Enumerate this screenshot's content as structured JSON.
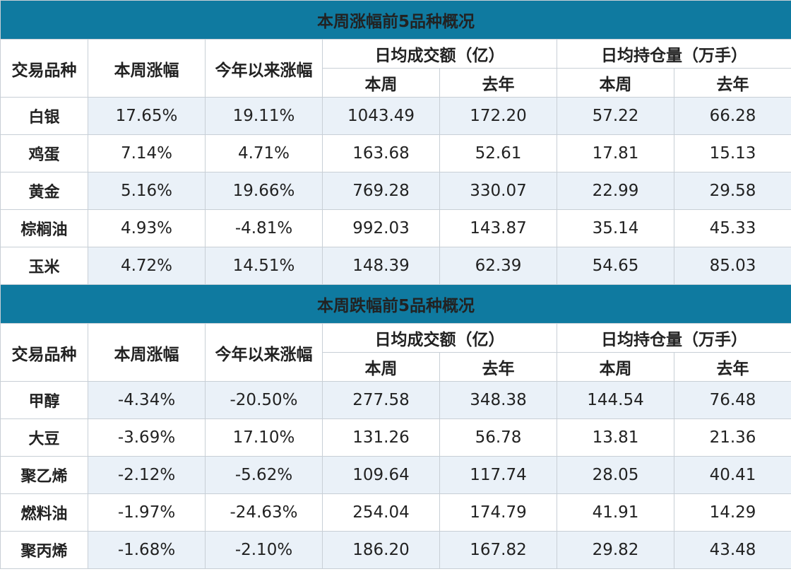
{
  "columns": {
    "variety": "交易品种",
    "week_change": "本周涨幅",
    "ytd_change": "今年以来涨幅",
    "avg_volume": "日均成交额（亿）",
    "avg_open_interest": "日均持仓量（万手）",
    "this_week": "本周",
    "last_year": "去年"
  },
  "gainers": {
    "title": "本周涨幅前5品种概况",
    "rows": [
      {
        "name": "白银",
        "week": "17.65%",
        "ytd": "19.11%",
        "vol_week": "1043.49",
        "vol_last": "172.20",
        "oi_week": "57.22",
        "oi_last": "66.28"
      },
      {
        "name": "鸡蛋",
        "week": "7.14%",
        "ytd": "4.71%",
        "vol_week": "163.68",
        "vol_last": "52.61",
        "oi_week": "17.81",
        "oi_last": "15.13"
      },
      {
        "name": "黄金",
        "week": "5.16%",
        "ytd": "19.66%",
        "vol_week": "769.28",
        "vol_last": "330.07",
        "oi_week": "22.99",
        "oi_last": "29.58"
      },
      {
        "name": "棕榈油",
        "week": "4.93%",
        "ytd": "-4.81%",
        "vol_week": "992.03",
        "vol_last": "143.87",
        "oi_week": "35.14",
        "oi_last": "45.33"
      },
      {
        "name": "玉米",
        "week": "4.72%",
        "ytd": "14.51%",
        "vol_week": "148.39",
        "vol_last": "62.39",
        "oi_week": "54.65",
        "oi_last": "85.03"
      }
    ]
  },
  "losers": {
    "title": "本周跌幅前5品种概况",
    "rows": [
      {
        "name": "甲醇",
        "week": "-4.34%",
        "ytd": "-20.50%",
        "vol_week": "277.58",
        "vol_last": "348.38",
        "oi_week": "144.54",
        "oi_last": "76.48"
      },
      {
        "name": "大豆",
        "week": "-3.69%",
        "ytd": "17.10%",
        "vol_week": "131.26",
        "vol_last": "56.78",
        "oi_week": "13.81",
        "oi_last": "21.36"
      },
      {
        "name": "聚乙烯",
        "week": "-2.12%",
        "ytd": "-5.62%",
        "vol_week": "109.64",
        "vol_last": "117.74",
        "oi_week": "28.05",
        "oi_last": "40.41"
      },
      {
        "name": "燃料油",
        "week": "-1.97%",
        "ytd": "-24.63%",
        "vol_week": "254.04",
        "vol_last": "174.79",
        "oi_week": "41.91",
        "oi_last": "14.29"
      },
      {
        "name": "聚丙烯",
        "week": "-1.68%",
        "ytd": "-2.10%",
        "vol_week": "186.20",
        "vol_last": "167.82",
        "oi_week": "29.82",
        "oi_last": "43.48"
      }
    ]
  }
}
